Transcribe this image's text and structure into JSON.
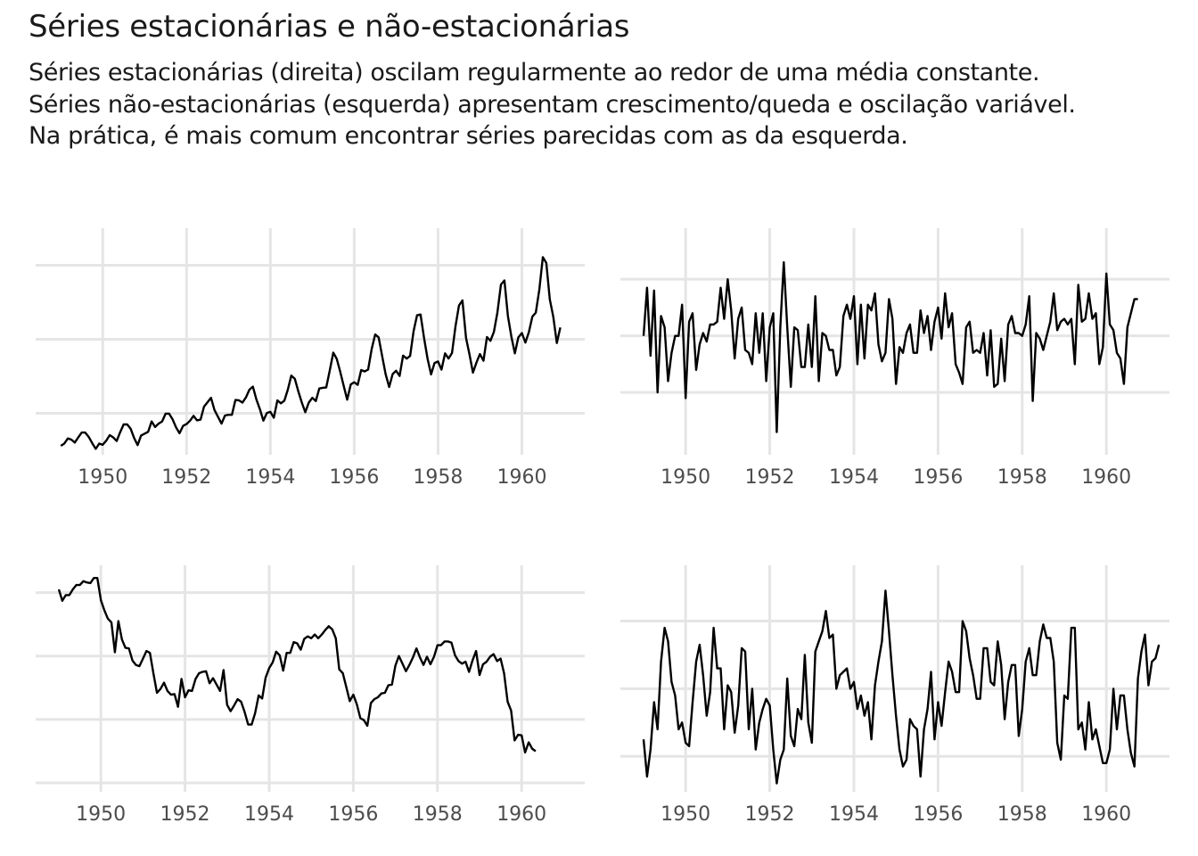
{
  "title": "Séries estacionárias e não-estacionárias",
  "subtitle": [
    "Séries estacionárias (direita) oscilam regularmente ao redor de uma média constante.",
    "Séries não-estacionárias (esquerda) apresentam crescimento/queda e oscilação variável.",
    "Na prática, é mais comum encontrar séries parecidas com as da esquerda."
  ],
  "colors": {
    "line": "#000000",
    "grid": "#e5e5e5",
    "tick_text": "#4d4d4d"
  },
  "chart_data": [
    {
      "type": "line",
      "position": "top-left",
      "x_start": 1949.0,
      "x_step": 0.0833333,
      "xlim": [
        1948.4,
        1961.5
      ],
      "ylim": [
        88,
        700
      ],
      "x_ticks": [
        1950,
        1952,
        1954,
        1956,
        1958,
        1960
      ],
      "x_tick_labels": [
        "1950",
        "1952",
        "1954",
        "1956",
        "1958",
        "1960"
      ],
      "y_gridlines": [
        200,
        400,
        600
      ],
      "y_axis_labels_shown": false,
      "values": [
        112,
        118,
        132,
        129,
        121,
        135,
        148,
        148,
        136,
        119,
        104,
        118,
        115,
        126,
        141,
        135,
        125,
        149,
        170,
        170,
        158,
        133,
        114,
        140,
        145,
        150,
        178,
        163,
        172,
        178,
        199,
        199,
        184,
        162,
        146,
        166,
        171,
        180,
        193,
        181,
        183,
        218,
        230,
        242,
        209,
        191,
        172,
        194,
        196,
        196,
        236,
        235,
        229,
        243,
        264,
        272,
        237,
        211,
        180,
        201,
        204,
        188,
        235,
        227,
        234,
        264,
        302,
        293,
        259,
        229,
        203,
        229,
        242,
        233,
        267,
        269,
        270,
        315,
        364,
        347,
        312,
        274,
        237,
        278,
        284,
        277,
        317,
        313,
        318,
        374,
        413,
        405,
        355,
        306,
        271,
        306,
        315,
        301,
        356,
        348,
        355,
        422,
        465,
        467,
        404,
        347,
        305,
        336,
        340,
        318,
        362,
        348,
        363,
        435,
        491,
        505,
        404,
        359,
        310,
        337,
        360,
        342,
        406,
        396,
        420,
        472,
        548,
        559,
        463,
        407,
        362,
        405,
        417,
        391,
        419,
        461,
        472,
        535,
        622,
        606,
        508,
        461,
        390,
        432
      ]
    },
    {
      "type": "line",
      "position": "top-right",
      "x_start": 1949.0,
      "x_step": 0.0833333,
      "xlim": [
        1948.45,
        1961.5
      ],
      "ylim": [
        -4.2,
        3.8
      ],
      "x_ticks": [
        1950,
        1952,
        1954,
        1956,
        1958,
        1960
      ],
      "x_tick_labels": [
        "1950",
        "1952",
        "1954",
        "1956",
        "1958",
        "1960"
      ],
      "y_gridlines": [
        -2,
        0,
        2
      ],
      "y_axis_labels_shown": false,
      "values": [
        0.0,
        1.7,
        -0.7,
        1.6,
        -2.0,
        0.7,
        0.3,
        -1.6,
        -0.6,
        0.0,
        0.0,
        1.1,
        -2.2,
        0.5,
        0.8,
        -1.2,
        -0.3,
        0.1,
        -0.2,
        0.4,
        0.4,
        0.5,
        1.7,
        0.6,
        2.0,
        0.9,
        -0.8,
        0.6,
        1.0,
        -0.5,
        -0.6,
        -1.0,
        0.8,
        -0.6,
        0.8,
        -1.6,
        0.3,
        0.8,
        -3.4,
        0.3,
        2.6,
        0.3,
        -1.8,
        0.3,
        0.2,
        -1.1,
        -1.1,
        0.4,
        -1.1,
        1.4,
        -1.6,
        0.1,
        0.0,
        -0.5,
        -0.5,
        -1.4,
        -1.1,
        0.7,
        1.1,
        0.6,
        1.4,
        -1.0,
        1.1,
        -0.8,
        1.1,
        0.9,
        1.5,
        -0.3,
        -0.9,
        -0.6,
        1.3,
        0.6,
        -1.7,
        -0.4,
        -0.6,
        0.1,
        0.4,
        -0.6,
        -0.6,
        0.9,
        0.1,
        0.7,
        -0.5,
        0.5,
        1.0,
        -0.1,
        1.5,
        0.3,
        0.8,
        -1.0,
        -1.3,
        -1.7,
        0.3,
        0.5,
        -0.6,
        -0.5,
        -0.6,
        0.1,
        -1.4,
        0.2,
        -1.8,
        -1.7,
        -0.1,
        -1.6,
        0.4,
        0.7,
        0.1,
        0.1,
        0.0,
        0.4,
        1.4,
        -2.3,
        0.1,
        -0.1,
        -0.5,
        0.0,
        0.5,
        1.5,
        0.2,
        0.5,
        0.6,
        0.4,
        0.6,
        -1.0,
        1.8,
        0.5,
        0.6,
        1.5,
        0.6,
        0.8,
        -1.0,
        -0.4,
        2.2,
        0.4,
        0.2,
        -0.6,
        -0.8,
        -1.7,
        0.3,
        0.8,
        1.3,
        1.3
      ]
    },
    {
      "type": "line",
      "position": "bottom-left",
      "x_start": 1949.0,
      "x_step": 0.0833333,
      "xlim": [
        1948.45,
        1961.5
      ],
      "ylim": [
        1.36,
        4.93
      ],
      "x_ticks": [
        1950,
        1952,
        1954,
        1956,
        1958,
        1960
      ],
      "x_tick_labels": [
        "1950",
        "1952",
        "1954",
        "1956",
        "1958",
        "1960"
      ],
      "y_gridlines": [
        1.5,
        2.5,
        3.5,
        4.5
      ],
      "y_axis_labels_shown": false,
      "values": [
        4.55,
        4.37,
        4.46,
        4.46,
        4.55,
        4.62,
        4.62,
        4.68,
        4.66,
        4.65,
        4.73,
        4.73,
        4.38,
        4.22,
        4.09,
        4.03,
        3.56,
        4.05,
        3.76,
        3.63,
        3.62,
        3.43,
        3.36,
        3.34,
        3.46,
        3.58,
        3.55,
        3.22,
        2.92,
        2.98,
        3.08,
        2.95,
        2.89,
        2.9,
        2.7,
        3.14,
        2.85,
        2.96,
        2.95,
        3.14,
        3.23,
        3.25,
        3.26,
        3.07,
        3.15,
        3.05,
        2.95,
        3.28,
        2.73,
        2.63,
        2.72,
        2.82,
        2.78,
        2.62,
        2.42,
        2.42,
        2.6,
        2.88,
        2.83,
        3.16,
        3.31,
        3.4,
        3.57,
        3.51,
        3.27,
        3.55,
        3.55,
        3.72,
        3.7,
        3.6,
        3.77,
        3.81,
        3.78,
        3.84,
        3.78,
        3.84,
        3.91,
        3.97,
        3.92,
        3.78,
        3.29,
        3.23,
        3.01,
        2.79,
        2.89,
        2.74,
        2.52,
        2.49,
        2.4,
        2.76,
        2.82,
        2.85,
        2.91,
        2.92,
        3.04,
        3.05,
        3.35,
        3.5,
        3.38,
        3.26,
        3.36,
        3.48,
        3.62,
        3.48,
        3.36,
        3.49,
        3.37,
        3.49,
        3.67,
        3.67,
        3.73,
        3.73,
        3.71,
        3.51,
        3.42,
        3.38,
        3.41,
        3.25,
        3.43,
        3.58,
        3.2,
        3.37,
        3.41,
        3.49,
        3.53,
        3.42,
        3.46,
        3.23,
        2.78,
        2.64,
        2.17,
        2.26,
        2.25,
        1.98,
        2.14,
        2.04,
        2.0
      ]
    },
    {
      "type": "line",
      "position": "bottom-right",
      "x_start": 1949.0,
      "x_step": 0.0833333,
      "xlim": [
        1948.45,
        1961.5
      ],
      "ylim": [
        -3.05,
        3.65
      ],
      "x_ticks": [
        1950,
        1952,
        1954,
        1956,
        1958,
        1960
      ],
      "x_tick_labels": [
        "1950",
        "1952",
        "1954",
        "1956",
        "1958",
        "1960"
      ],
      "y_gridlines": [
        -2,
        0,
        2
      ],
      "y_axis_labels_shown": false,
      "values": [
        -1.5,
        -2.6,
        -1.8,
        -0.4,
        -1.2,
        0.8,
        1.8,
        1.4,
        0.2,
        -0.2,
        -1.2,
        -1.0,
        -1.6,
        -1.7,
        -0.4,
        0.8,
        1.3,
        0.4,
        -0.8,
        -0.1,
        1.8,
        0.6,
        0.6,
        -1.2,
        0.1,
        -0.1,
        -1.3,
        -0.5,
        1.2,
        1.1,
        -1.2,
        0.0,
        -1.8,
        -1.0,
        -0.6,
        -0.3,
        -0.5,
        -1.8,
        -2.8,
        -2.1,
        -1.8,
        0.3,
        -1.4,
        -1.7,
        -0.6,
        -0.9,
        1.0,
        -1.0,
        -1.6,
        1.1,
        1.4,
        1.7,
        2.3,
        1.5,
        1.6,
        0.0,
        0.4,
        0.5,
        0.6,
        0.0,
        0.2,
        -0.6,
        -0.2,
        -0.8,
        -0.4,
        -1.5,
        0.1,
        0.8,
        1.4,
        2.9,
        1.7,
        0.4,
        -0.8,
        -1.8,
        -2.3,
        -2.1,
        -0.9,
        -1.1,
        -1.2,
        -2.6,
        -1.2,
        -0.6,
        0.5,
        -1.5,
        -0.4,
        -1.1,
        -0.1,
        0.8,
        0.5,
        -0.1,
        -0.1,
        2.0,
        1.7,
        0.9,
        0.4,
        -0.3,
        -0.3,
        1.2,
        1.2,
        0.2,
        0.1,
        1.4,
        0.7,
        -0.9,
        0.2,
        0.7,
        0.7,
        -1.4,
        -0.6,
        0.8,
        1.2,
        0.4,
        0.4,
        1.4,
        1.9,
        1.5,
        1.5,
        0.8,
        -1.6,
        -2.1,
        -0.2,
        -0.3,
        1.8,
        1.8,
        -1.2,
        -1.0,
        -1.8,
        -0.4,
        -1.5,
        -1.2,
        -1.7,
        -2.2,
        -2.2,
        -1.8,
        0.0,
        -1.2,
        -0.2,
        -0.2,
        -1.2,
        -1.9,
        -2.3,
        0.3,
        1.1,
        1.6,
        0.1,
        0.8,
        0.9,
        1.3
      ]
    }
  ]
}
